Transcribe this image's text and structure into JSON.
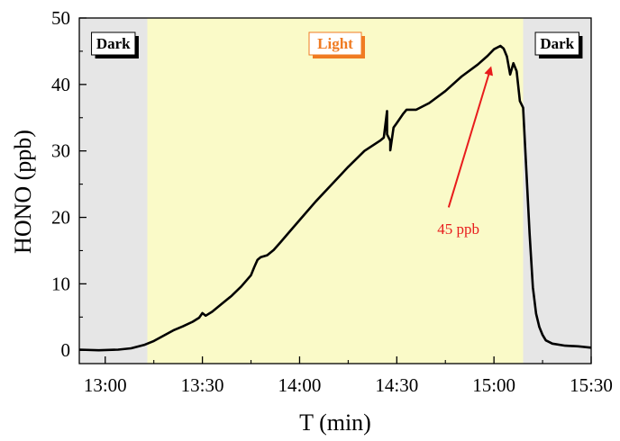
{
  "chart_data": {
    "type": "line",
    "xlabel": "T (min)",
    "ylabel": "HONO (ppb)",
    "x_ticks": [
      "13:00",
      "13:30",
      "14:00",
      "14:30",
      "15:00",
      "15:30"
    ],
    "xlim": [
      "12:52",
      "15:30"
    ],
    "ylim": [
      -2,
      50
    ],
    "y_ticks": [
      0,
      10,
      20,
      30,
      40,
      50
    ],
    "grid": false,
    "regions": [
      {
        "label": "Dark",
        "start": "12:52",
        "end": "13:13",
        "color": "#e6e6e6",
        "label_color": "#000000",
        "label_border": "#000000"
      },
      {
        "label": "Light",
        "start": "13:13",
        "end": "15:09",
        "color": "#fafac8",
        "label_color": "#f07b22",
        "label_border": "#f07b22"
      },
      {
        "label": "Dark",
        "start": "15:09",
        "end": "15:30",
        "color": "#e6e6e6",
        "label_color": "#000000",
        "label_border": "#000000"
      }
    ],
    "series": [
      {
        "color": "#000000",
        "points": [
          [
            "12:52",
            0.1
          ],
          [
            "12:58",
            0.0
          ],
          [
            "13:04",
            0.1
          ],
          [
            "13:08",
            0.3
          ],
          [
            "13:12",
            0.8
          ],
          [
            "13:15",
            1.4
          ],
          [
            "13:18",
            2.2
          ],
          [
            "13:21",
            3.0
          ],
          [
            "13:24",
            3.6
          ],
          [
            "13:27",
            4.3
          ],
          [
            "13:29",
            4.9
          ],
          [
            "13:30",
            5.6
          ],
          [
            "13:31",
            5.2
          ],
          [
            "13:33",
            5.8
          ],
          [
            "13:36",
            7.0
          ],
          [
            "13:39",
            8.2
          ],
          [
            "13:42",
            9.6
          ],
          [
            "13:45",
            11.3
          ],
          [
            "13:46",
            12.5
          ],
          [
            "13:47",
            13.6
          ],
          [
            "13:48",
            14.0
          ],
          [
            "13:50",
            14.3
          ],
          [
            "13:52",
            15.1
          ],
          [
            "13:54",
            16.2
          ],
          [
            "13:57",
            17.9
          ],
          [
            "14:00",
            19.6
          ],
          [
            "14:05",
            22.4
          ],
          [
            "14:10",
            25.0
          ],
          [
            "14:15",
            27.6
          ],
          [
            "14:20",
            30.0
          ],
          [
            "14:25",
            31.6
          ],
          [
            "14:26",
            32.0
          ],
          [
            "14:27",
            36.0
          ],
          [
            "14:27",
            32.5
          ],
          [
            "14:28",
            31.5
          ],
          [
            "14:28",
            30.1
          ],
          [
            "14:29",
            33.5
          ],
          [
            "14:30",
            34.2
          ],
          [
            "14:32",
            35.6
          ],
          [
            "14:33",
            36.2
          ],
          [
            "14:36",
            36.2
          ],
          [
            "14:40",
            37.2
          ],
          [
            "14:45",
            39.0
          ],
          [
            "14:50",
            41.2
          ],
          [
            "14:55",
            43.0
          ],
          [
            "14:58",
            44.3
          ],
          [
            "15:00",
            45.3
          ],
          [
            "15:02",
            45.8
          ],
          [
            "15:03",
            45.4
          ],
          [
            "15:04",
            44.2
          ],
          [
            "15:05",
            41.5
          ],
          [
            "15:06",
            43.2
          ],
          [
            "15:07",
            42.0
          ],
          [
            "15:08",
            37.5
          ],
          [
            "15:09",
            36.5
          ],
          [
            "15:10",
            27.0
          ],
          [
            "15:11",
            17.5
          ],
          [
            "15:12",
            9.5
          ],
          [
            "15:13",
            5.5
          ],
          [
            "15:14",
            3.5
          ],
          [
            "15:15",
            2.3
          ],
          [
            "15:16",
            1.5
          ],
          [
            "15:18",
            1.0
          ],
          [
            "15:22",
            0.7
          ],
          [
            "15:26",
            0.6
          ],
          [
            "15:30",
            0.4
          ]
        ]
      }
    ],
    "annotations": [
      {
        "text": "45 ppb",
        "color": "#e81c1c",
        "x": "14:49",
        "y": 17.5,
        "arrow_from": [
          "14:46",
          21.5
        ],
        "arrow_to": [
          "14:59",
          42.5
        ]
      }
    ]
  }
}
